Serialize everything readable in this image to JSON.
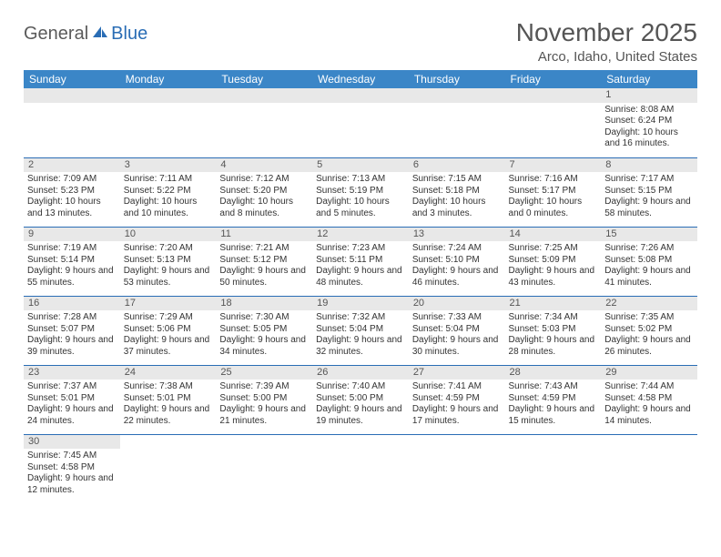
{
  "logo": {
    "text1": "General",
    "text2": "Blue"
  },
  "title": "November 2025",
  "subtitle": "Arco, Idaho, United States",
  "headerBg": "#3b86c7",
  "borderColor": "#2a6db5",
  "daynumBg": "#e8e8e8",
  "weekdays": [
    "Sunday",
    "Monday",
    "Tuesday",
    "Wednesday",
    "Thursday",
    "Friday",
    "Saturday"
  ],
  "weeks": [
    [
      null,
      null,
      null,
      null,
      null,
      null,
      {
        "n": "1",
        "sr": "8:08 AM",
        "ss": "6:24 PM",
        "dl": "10 hours and 16 minutes."
      }
    ],
    [
      {
        "n": "2",
        "sr": "7:09 AM",
        "ss": "5:23 PM",
        "dl": "10 hours and 13 minutes."
      },
      {
        "n": "3",
        "sr": "7:11 AM",
        "ss": "5:22 PM",
        "dl": "10 hours and 10 minutes."
      },
      {
        "n": "4",
        "sr": "7:12 AM",
        "ss": "5:20 PM",
        "dl": "10 hours and 8 minutes."
      },
      {
        "n": "5",
        "sr": "7:13 AM",
        "ss": "5:19 PM",
        "dl": "10 hours and 5 minutes."
      },
      {
        "n": "6",
        "sr": "7:15 AM",
        "ss": "5:18 PM",
        "dl": "10 hours and 3 minutes."
      },
      {
        "n": "7",
        "sr": "7:16 AM",
        "ss": "5:17 PM",
        "dl": "10 hours and 0 minutes."
      },
      {
        "n": "8",
        "sr": "7:17 AM",
        "ss": "5:15 PM",
        "dl": "9 hours and 58 minutes."
      }
    ],
    [
      {
        "n": "9",
        "sr": "7:19 AM",
        "ss": "5:14 PM",
        "dl": "9 hours and 55 minutes."
      },
      {
        "n": "10",
        "sr": "7:20 AM",
        "ss": "5:13 PM",
        "dl": "9 hours and 53 minutes."
      },
      {
        "n": "11",
        "sr": "7:21 AM",
        "ss": "5:12 PM",
        "dl": "9 hours and 50 minutes."
      },
      {
        "n": "12",
        "sr": "7:23 AM",
        "ss": "5:11 PM",
        "dl": "9 hours and 48 minutes."
      },
      {
        "n": "13",
        "sr": "7:24 AM",
        "ss": "5:10 PM",
        "dl": "9 hours and 46 minutes."
      },
      {
        "n": "14",
        "sr": "7:25 AM",
        "ss": "5:09 PM",
        "dl": "9 hours and 43 minutes."
      },
      {
        "n": "15",
        "sr": "7:26 AM",
        "ss": "5:08 PM",
        "dl": "9 hours and 41 minutes."
      }
    ],
    [
      {
        "n": "16",
        "sr": "7:28 AM",
        "ss": "5:07 PM",
        "dl": "9 hours and 39 minutes."
      },
      {
        "n": "17",
        "sr": "7:29 AM",
        "ss": "5:06 PM",
        "dl": "9 hours and 37 minutes."
      },
      {
        "n": "18",
        "sr": "7:30 AM",
        "ss": "5:05 PM",
        "dl": "9 hours and 34 minutes."
      },
      {
        "n": "19",
        "sr": "7:32 AM",
        "ss": "5:04 PM",
        "dl": "9 hours and 32 minutes."
      },
      {
        "n": "20",
        "sr": "7:33 AM",
        "ss": "5:04 PM",
        "dl": "9 hours and 30 minutes."
      },
      {
        "n": "21",
        "sr": "7:34 AM",
        "ss": "5:03 PM",
        "dl": "9 hours and 28 minutes."
      },
      {
        "n": "22",
        "sr": "7:35 AM",
        "ss": "5:02 PM",
        "dl": "9 hours and 26 minutes."
      }
    ],
    [
      {
        "n": "23",
        "sr": "7:37 AM",
        "ss": "5:01 PM",
        "dl": "9 hours and 24 minutes."
      },
      {
        "n": "24",
        "sr": "7:38 AM",
        "ss": "5:01 PM",
        "dl": "9 hours and 22 minutes."
      },
      {
        "n": "25",
        "sr": "7:39 AM",
        "ss": "5:00 PM",
        "dl": "9 hours and 21 minutes."
      },
      {
        "n": "26",
        "sr": "7:40 AM",
        "ss": "5:00 PM",
        "dl": "9 hours and 19 minutes."
      },
      {
        "n": "27",
        "sr": "7:41 AM",
        "ss": "4:59 PM",
        "dl": "9 hours and 17 minutes."
      },
      {
        "n": "28",
        "sr": "7:43 AM",
        "ss": "4:59 PM",
        "dl": "9 hours and 15 minutes."
      },
      {
        "n": "29",
        "sr": "7:44 AM",
        "ss": "4:58 PM",
        "dl": "9 hours and 14 minutes."
      }
    ],
    [
      {
        "n": "30",
        "sr": "7:45 AM",
        "ss": "4:58 PM",
        "dl": "9 hours and 12 minutes."
      },
      null,
      null,
      null,
      null,
      null,
      null
    ]
  ],
  "labels": {
    "sunrise": "Sunrise: ",
    "sunset": "Sunset: ",
    "daylight": "Daylight: "
  }
}
